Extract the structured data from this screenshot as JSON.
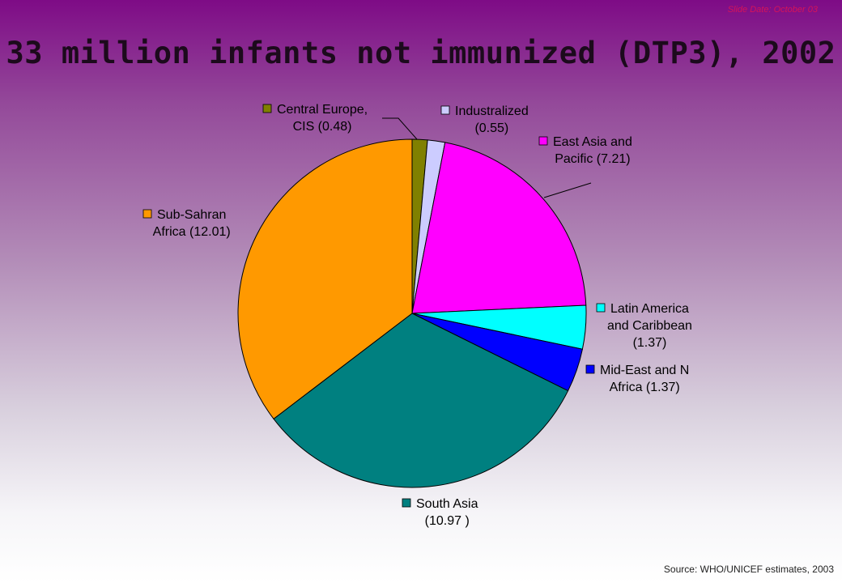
{
  "slide": {
    "date_label": "Slide Date: October  03",
    "source": "Source: WHO/UNICEF  estimates, 2003"
  },
  "colors": {
    "title": "#1c0a1c",
    "date": "#d4145a"
  },
  "chart_data": {
    "type": "pie",
    "title": "33 million infants not immunized (DTP3), 2002",
    "unit": "million infants",
    "legend": "labels beside slices",
    "slices": [
      {
        "name": "Central Europe, CIS",
        "value": 0.48,
        "color": "#808000",
        "label_lines": [
          "Central Europe,",
          "CIS (0.48)"
        ]
      },
      {
        "name": "Industralized",
        "value": 0.55,
        "color": "#ccccff",
        "label_lines": [
          "Industralized",
          "(0.55)"
        ]
      },
      {
        "name": "East Asia and Pacific",
        "value": 7.21,
        "color": "#ff00ff",
        "label_lines": [
          "East Asia and",
          "Pacific (7.21)"
        ]
      },
      {
        "name": "Latin America and Caribbean",
        "value": 1.37,
        "color": "#00ffff",
        "label_lines": [
          "Latin America",
          "and Caribbean",
          "(1.37)"
        ]
      },
      {
        "name": "Mid-East and N Africa",
        "value": 1.37,
        "color": "#0000ff",
        "label_lines": [
          "Mid-East and N",
          "Africa (1.37)"
        ]
      },
      {
        "name": "South Asia",
        "value": 10.97,
        "color": "#008080",
        "label_lines": [
          "South Asia",
          "(10.97 )"
        ]
      },
      {
        "name": "Sub-Sahran Africa",
        "value": 12.01,
        "color": "#ff9900",
        "label_lines": [
          "Sub-Sahran",
          "Africa (12.01)"
        ]
      }
    ]
  }
}
